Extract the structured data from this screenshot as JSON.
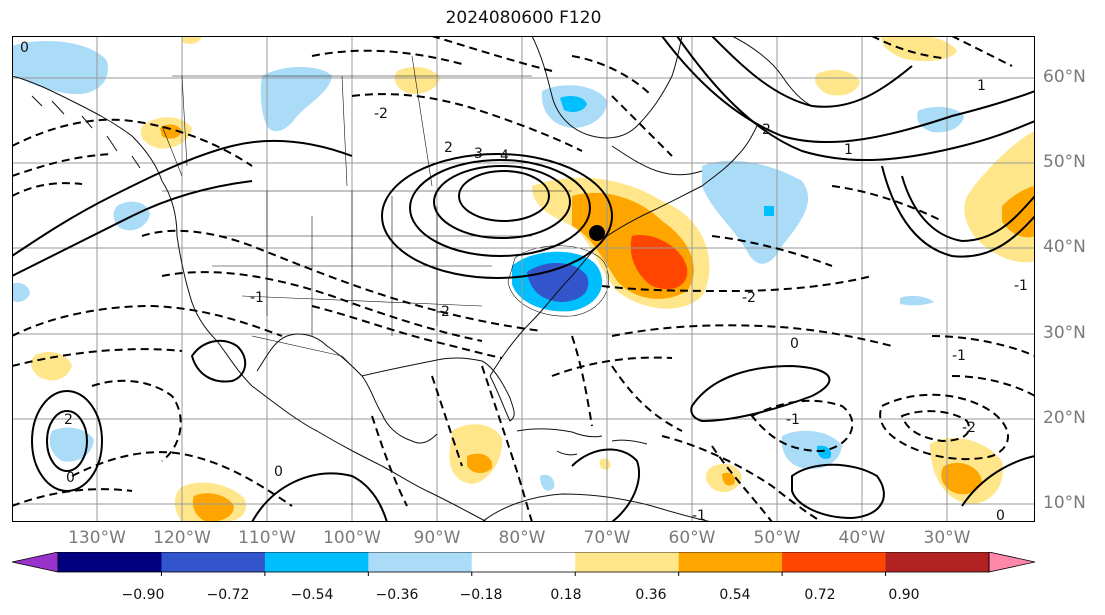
{
  "title": "2024080600 F120",
  "lat_labels": [
    "60°N",
    "50°N",
    "40°N",
    "30°N",
    "20°N",
    "10°N"
  ],
  "lon_labels": [
    "130°W",
    "120°W",
    "110°W",
    "100°W",
    "90°W",
    "80°W",
    "70°W",
    "60°W",
    "50°W",
    "40°W",
    "30°W"
  ],
  "colorbar": {
    "ticks": [
      "−0.90",
      "−0.72",
      "−0.54",
      "−0.36",
      "−0.18",
      "0.18",
      "0.36",
      "0.54",
      "0.72",
      "0.90"
    ],
    "colors": [
      "#9933cc",
      "#000080",
      "#3355cc",
      "#00bfff",
      "#aadcf8",
      "#ffffff",
      "#ffe68a",
      "#ffa500",
      "#ff4500",
      "#b22222",
      "#ff88aa"
    ]
  },
  "contour_labels": [
    "0",
    "-2",
    "2",
    "3",
    "4",
    "-1",
    "1",
    "2",
    "-2",
    "0",
    "-1",
    "1",
    "0",
    "-2",
    "-1",
    "-2",
    "0",
    "2",
    "-1",
    "-1",
    "0"
  ]
}
